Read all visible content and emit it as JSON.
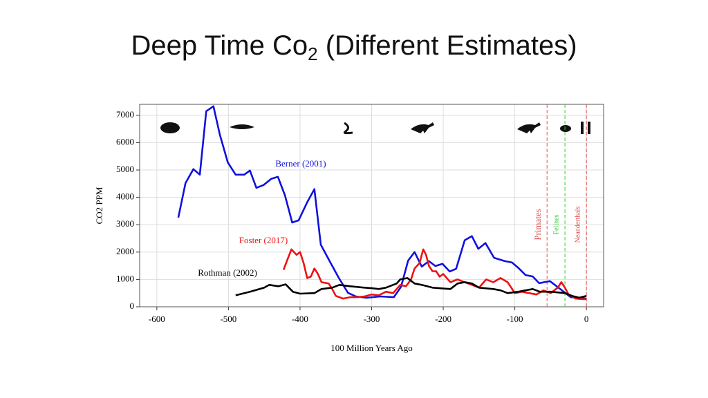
{
  "title": "Deep Time Co",
  "title_subscript": "2",
  "title_suffix": "(Different Estimates)",
  "chart_data": {
    "type": "line",
    "x_label": "100 Million Years Ago",
    "y_label": "CO2 PPM",
    "xlim": [
      -624,
      24
    ],
    "ylim": [
      0,
      7400
    ],
    "xticks": [
      -600,
      -500,
      -400,
      -300,
      -200,
      -100,
      0
    ],
    "yticks": [
      0,
      1000,
      2000,
      3000,
      4000,
      5000,
      6000,
      7000
    ],
    "grid": true,
    "series": [
      {
        "name": "Berner (2001)",
        "color": "#1010dd",
        "x": [
          -570,
          -560,
          -549,
          -540,
          -531,
          -521,
          -512,
          -501,
          -490,
          -478,
          -470,
          -461,
          -451,
          -440,
          -431,
          -421,
          -411,
          -402,
          -390,
          -380,
          -371,
          -358,
          -346,
          -333,
          -322,
          -307,
          -288,
          -269,
          -259,
          -249,
          -240,
          -230,
          -220,
          -211,
          -201,
          -191,
          -182,
          -170,
          -160,
          -151,
          -141,
          -129,
          -114,
          -104,
          -95,
          -85,
          -75,
          -66,
          -51,
          -37,
          -22,
          0
        ],
        "values": [
          3260,
          4520,
          5030,
          4830,
          7150,
          7330,
          6290,
          5280,
          4830,
          4830,
          4980,
          4350,
          4450,
          4680,
          4750,
          4070,
          3080,
          3160,
          3820,
          4300,
          2270,
          1640,
          1060,
          510,
          380,
          330,
          380,
          350,
          730,
          1690,
          2000,
          1470,
          1670,
          1490,
          1570,
          1290,
          1390,
          2430,
          2580,
          2120,
          2330,
          1790,
          1670,
          1620,
          1420,
          1160,
          1110,
          860,
          940,
          660,
          350,
          300
        ]
      },
      {
        "name": "Foster (2017)",
        "color": "#ee1111",
        "x": [
          -423,
          -418,
          -412,
          -405,
          -400,
          -395,
          -390,
          -385,
          -380,
          -375,
          -370,
          -360,
          -355,
          -350,
          -340,
          -330,
          -320,
          -310,
          -300,
          -290,
          -280,
          -270,
          -260,
          -252,
          -245,
          -240,
          -233,
          -228,
          -224,
          -220,
          -215,
          -210,
          -205,
          -200,
          -190,
          -180,
          -170,
          -160,
          -150,
          -140,
          -130,
          -120,
          -110,
          -100,
          -90,
          -80,
          -70,
          -60,
          -50,
          -40,
          -35,
          -30,
          -25,
          -15,
          -5,
          0
        ],
        "values": [
          1350,
          1700,
          2100,
          1900,
          2000,
          1600,
          1050,
          1100,
          1400,
          1200,
          900,
          850,
          650,
          400,
          300,
          350,
          350,
          380,
          450,
          420,
          550,
          500,
          800,
          750,
          1000,
          1400,
          1600,
          2100,
          1900,
          1500,
          1300,
          1300,
          1100,
          1200,
          900,
          1000,
          900,
          800,
          700,
          1000,
          900,
          1050,
          900,
          500,
          550,
          500,
          450,
          600,
          500,
          700,
          900,
          700,
          450,
          300,
          280,
          280
        ]
      },
      {
        "name": "Rothman (2002)",
        "color": "#000000",
        "x": [
          -490,
          -470,
          -450,
          -443,
          -430,
          -420,
          -410,
          -400,
          -380,
          -370,
          -355,
          -345,
          -330,
          -310,
          -300,
          -290,
          -280,
          -265,
          -260,
          -250,
          -240,
          -230,
          -215,
          -190,
          -180,
          -170,
          -160,
          -150,
          -130,
          -120,
          -110,
          -95,
          -85,
          -75,
          -65,
          -50,
          -30,
          -20,
          -10,
          0
        ],
        "values": [
          420,
          550,
          700,
          800,
          750,
          820,
          550,
          480,
          500,
          650,
          700,
          800,
          750,
          700,
          680,
          650,
          700,
          850,
          1000,
          1050,
          850,
          800,
          700,
          650,
          850,
          900,
          850,
          700,
          650,
          600,
          500,
          550,
          600,
          650,
          550,
          550,
          500,
          400,
          330,
          400
        ]
      }
    ],
    "events": [
      {
        "label": "Primates",
        "x": -55,
        "color": "#e05050"
      },
      {
        "label": "Felines",
        "x": -30,
        "color": "#33cc33"
      },
      {
        "label": "Neanderthals",
        "x": 0,
        "color": "#e05050"
      }
    ]
  }
}
